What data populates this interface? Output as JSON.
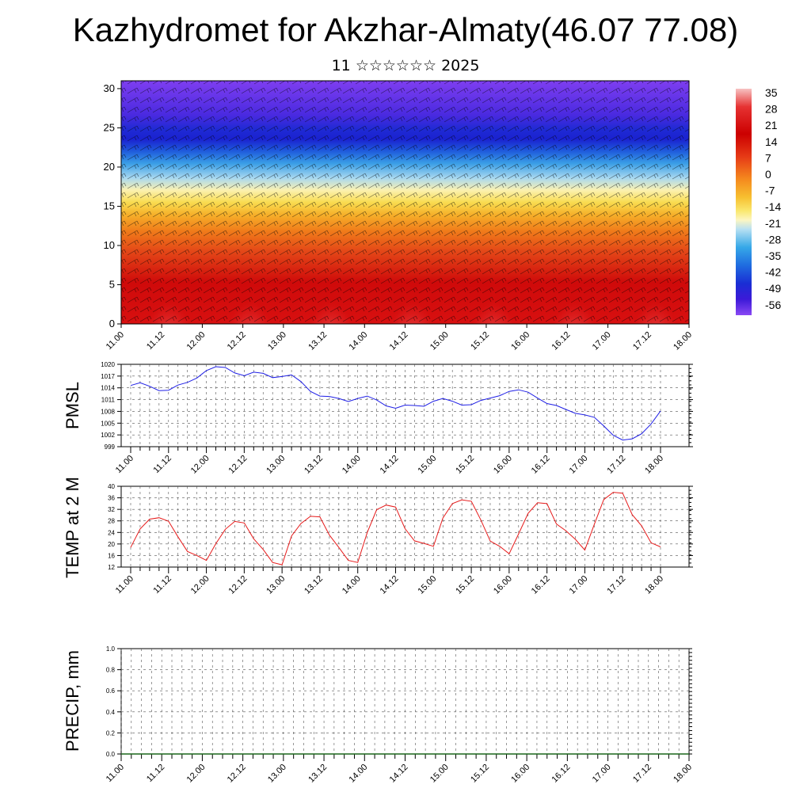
{
  "header": {
    "title": "Kazhydromet for Akzhar-Almaty(46.07 77.08)",
    "date_day": "11",
    "date_month": "☆☆☆☆☆☆",
    "date_year": "2025"
  },
  "time_labels": [
    "11.00",
    "11.12",
    "12.00",
    "12.12",
    "13.00",
    "13.12",
    "14.00",
    "14.12",
    "15.00",
    "15.12",
    "16.00",
    "16.12",
    "17.00",
    "17.12",
    "18.00"
  ],
  "colors": {
    "pmsl_line": "#1f1fe6",
    "temp_line": "#e61a1a",
    "precip_line": "#1a661a",
    "grid": "#555555"
  },
  "chart_data": [
    {
      "type": "heatmap",
      "name": "vertical-section",
      "y_ticks": [
        "0",
        "5",
        "10",
        "15",
        "20",
        "25",
        "30"
      ],
      "ylim": [
        0,
        31
      ],
      "x_ticks": [
        "11.00",
        "11.12",
        "12.00",
        "12.12",
        "13.00",
        "13.12",
        "14.00",
        "14.12",
        "15.00",
        "15.12",
        "16.00",
        "16.12",
        "17.00",
        "17.12",
        "18.00"
      ],
      "colorbar": {
        "labels": [
          "35",
          "28",
          "21",
          "14",
          "7",
          "0",
          "-7",
          "-14",
          "-21",
          "-28",
          "-35",
          "-42",
          "-49",
          "-56"
        ],
        "stops": [
          "#f7c2c2",
          "#e63232",
          "#cc0000",
          "#e23a1a",
          "#f06a18",
          "#f49a1e",
          "#f8d23c",
          "#fbf3a0",
          "#9fd4ef",
          "#2aa2e6",
          "#1f5fdb",
          "#1c28d2",
          "#3a1bd6",
          "#7a3cf0"
        ]
      },
      "description_layers": "temperature shading with wind barbs"
    },
    {
      "type": "line",
      "name": "PMSL",
      "ylabel": "PMSL",
      "y_ticks": [
        "1020",
        "1017",
        "1014",
        "1011",
        "1008",
        "1005",
        "1002",
        "999"
      ],
      "ylim": [
        999,
        1020
      ],
      "x": [
        "11.00",
        "11.03",
        "11.06",
        "11.09",
        "11.12",
        "11.15",
        "11.18",
        "11.21",
        "12.00",
        "12.03",
        "12.06",
        "12.09",
        "12.12",
        "12.15",
        "12.18",
        "12.21",
        "13.00",
        "13.03",
        "13.06",
        "13.09",
        "13.12",
        "13.15",
        "13.18",
        "13.21",
        "14.00",
        "14.03",
        "14.06",
        "14.09",
        "14.12",
        "14.15",
        "14.18",
        "14.21",
        "15.00",
        "15.03",
        "15.06",
        "15.09",
        "15.12",
        "15.15",
        "15.18",
        "15.21",
        "16.00",
        "16.03",
        "16.06",
        "16.09",
        "16.12",
        "16.15",
        "16.18",
        "16.21",
        "17.00",
        "17.03",
        "17.06",
        "17.09",
        "17.12",
        "17.15",
        "17.18",
        "17.21",
        "18.00"
      ],
      "values": [
        1014.6,
        1015.3,
        1014.4,
        1013.3,
        1013.4,
        1014.7,
        1015.4,
        1016.5,
        1018.4,
        1019.4,
        1019.2,
        1017.8,
        1017.1,
        1018.0,
        1017.7,
        1016.6,
        1016.9,
        1017.3,
        1015.6,
        1013.1,
        1011.9,
        1011.8,
        1011.3,
        1010.5,
        1011.3,
        1011.9,
        1010.9,
        1009.4,
        1008.8,
        1009.6,
        1009.5,
        1009.3,
        1010.6,
        1011.3,
        1010.6,
        1009.6,
        1009.7,
        1010.8,
        1011.4,
        1012.0,
        1013.1,
        1013.5,
        1012.9,
        1011.4,
        1010.0,
        1009.5,
        1008.5,
        1007.5,
        1007.1,
        1006.5,
        1004.3,
        1001.9,
        1000.7,
        1001.0,
        1002.3,
        1004.8,
        1008.1
      ]
    },
    {
      "type": "line",
      "name": "TEMP at 2 M",
      "ylabel": "TEMP at 2 M",
      "y_ticks": [
        "40",
        "36",
        "32",
        "28",
        "24",
        "20",
        "16",
        "12"
      ],
      "ylim": [
        12,
        40
      ],
      "x": [
        "11.00",
        "11.03",
        "11.06",
        "11.09",
        "11.12",
        "11.15",
        "11.18",
        "11.21",
        "12.00",
        "12.03",
        "12.06",
        "12.09",
        "12.12",
        "12.15",
        "12.18",
        "12.21",
        "13.00",
        "13.03",
        "13.06",
        "13.09",
        "13.12",
        "13.15",
        "13.18",
        "13.21",
        "14.00",
        "14.03",
        "14.06",
        "14.09",
        "14.12",
        "14.15",
        "14.18",
        "14.21",
        "15.00",
        "15.03",
        "15.06",
        "15.09",
        "15.12",
        "15.15",
        "15.18",
        "15.21",
        "16.00",
        "16.03",
        "16.06",
        "16.09",
        "16.12",
        "16.15",
        "16.18",
        "16.21",
        "17.00",
        "17.03",
        "17.06",
        "17.09",
        "17.12",
        "17.15",
        "17.18",
        "17.21",
        "18.00"
      ],
      "values": [
        18.8,
        25.2,
        28.6,
        29.1,
        27.9,
        22.5,
        17.4,
        16.0,
        14.3,
        20.1,
        25.1,
        27.8,
        27.3,
        21.8,
        18.1,
        13.6,
        12.8,
        22.8,
        27.1,
        29.6,
        29.4,
        23.1,
        18.8,
        14.3,
        13.6,
        24.0,
        31.9,
        33.5,
        32.8,
        25.3,
        21.1,
        20.2,
        19.2,
        29.0,
        34.0,
        35.3,
        34.8,
        28.4,
        21.0,
        19.2,
        16.6,
        23.5,
        30.6,
        34.3,
        34.0,
        26.9,
        24.6,
        21.6,
        17.9,
        26.8,
        35.4,
        37.9,
        37.6,
        30.2,
        26.3,
        20.4,
        19.0
      ]
    },
    {
      "type": "line",
      "name": "PRECIP",
      "ylabel": "PRECIP, mm",
      "y_ticks": [
        "1.0",
        "0.8",
        "0.6",
        "0.4",
        "0.2",
        "0.0"
      ],
      "ylim": [
        0,
        1
      ],
      "values_all_zero": true
    }
  ]
}
